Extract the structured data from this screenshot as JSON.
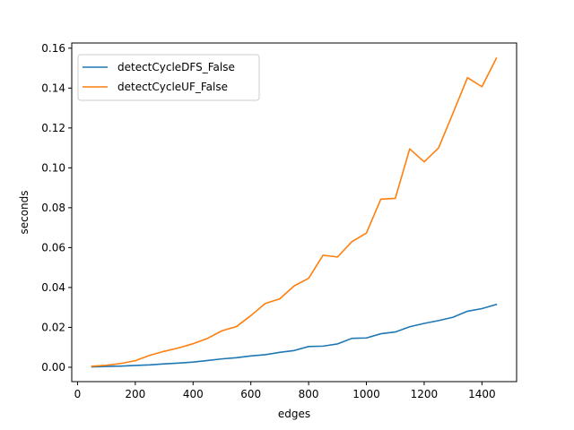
{
  "chart_data": {
    "type": "line",
    "xlabel": "edges",
    "ylabel": "seconds",
    "xlim": [
      -20,
      1520
    ],
    "ylim": [
      -0.0072,
      0.1626
    ],
    "xticks": [
      0,
      200,
      400,
      600,
      800,
      1000,
      1200,
      1400
    ],
    "yticks": [
      0.0,
      0.02,
      0.04,
      0.06,
      0.08,
      0.1,
      0.12,
      0.14,
      0.16
    ],
    "grid": false,
    "legend_position": "upper-left",
    "x": [
      50,
      100,
      150,
      200,
      250,
      300,
      350,
      400,
      450,
      500,
      550,
      600,
      650,
      700,
      750,
      800,
      850,
      900,
      950,
      1000,
      1050,
      1100,
      1150,
      1200,
      1250,
      1300,
      1350,
      1400,
      1450
    ],
    "series": [
      {
        "name": "detectCycleDFS_False",
        "color": "#1f77b4",
        "values": [
          0.0002,
          0.0004,
          0.0006,
          0.0009,
          0.0012,
          0.0017,
          0.0021,
          0.0026,
          0.0034,
          0.0042,
          0.0048,
          0.0057,
          0.0063,
          0.0075,
          0.0084,
          0.0104,
          0.0106,
          0.0117,
          0.0145,
          0.0147,
          0.0168,
          0.0177,
          0.0203,
          0.022,
          0.0234,
          0.0251,
          0.0281,
          0.0294,
          0.0315
        ]
      },
      {
        "name": "detectCycleUF_False",
        "color": "#ff7f0e",
        "values": [
          0.0005,
          0.001,
          0.0019,
          0.0033,
          0.006,
          0.008,
          0.0097,
          0.0118,
          0.0145,
          0.0183,
          0.0204,
          0.0259,
          0.032,
          0.0343,
          0.0408,
          0.0446,
          0.0562,
          0.0553,
          0.063,
          0.0673,
          0.0843,
          0.0847,
          0.1095,
          0.103,
          0.11,
          0.1275,
          0.1452,
          0.1407,
          0.155
        ]
      }
    ]
  }
}
